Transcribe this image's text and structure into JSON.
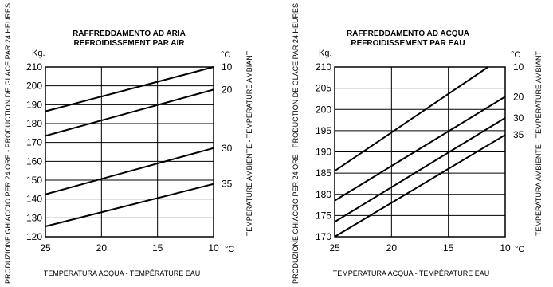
{
  "chart_data": [
    {
      "type": "line",
      "title": "RAFFREDDAMENTO AD ARIA",
      "subtitle": "REFROIDISSEMENT PAR AIR",
      "ylabel": "PRODUZIONE GHIACCIO PER 24 ORE - PRODUCTION DE GLACE PAR 24 HEURES",
      "ylabel_unit": "Kg.",
      "xlabel": "TEMPERATURA ACQUA - TEMPÉRATURE EAU",
      "x_unit": "°C",
      "right_label": "TEMPERATURE AMBIENTE - TEMPERATURE AMBIANT",
      "right_unit": "°C",
      "xlim": [
        25,
        10
      ],
      "ylim": [
        120,
        210
      ],
      "x_ticks": [
        "25",
        "20",
        "15",
        "10"
      ],
      "y_ticks": [
        "120",
        "130",
        "140",
        "150",
        "160",
        "170",
        "180",
        "190",
        "200",
        "210"
      ],
      "grid": true,
      "series": [
        {
          "name": "10",
          "x": [
            25,
            10
          ],
          "values": [
            186.5,
            210
          ]
        },
        {
          "name": "20",
          "x": [
            25,
            10
          ],
          "values": [
            173.5,
            198
          ]
        },
        {
          "name": "30",
          "x": [
            25,
            10
          ],
          "values": [
            142.5,
            167
          ]
        },
        {
          "name": "35",
          "x": [
            25,
            10
          ],
          "values": [
            125.5,
            148
          ]
        }
      ]
    },
    {
      "type": "line",
      "title": "RAFFREDDAMENTO AD ACQUA",
      "subtitle": "REFROIDISSEMENT PAR EAU",
      "ylabel": "PRODUZIONE GHIACCIO PER 24 ORE - PRODUCTION DE GLACE PAR 24 HEURES",
      "ylabel_unit": "Kg.",
      "xlabel": "TEMPERATURA ACQUA - TEMPÉRATURE EAU",
      "x_unit": "°C",
      "right_label": "TEMPERATURA AMBIENTE - TEMPERATURE AMBIANT",
      "right_unit": "°C",
      "xlim": [
        25,
        10
      ],
      "ylim": [
        170,
        210
      ],
      "x_ticks": [
        "25",
        "20",
        "15",
        "10"
      ],
      "y_ticks": [
        "170",
        "175",
        "180",
        "185",
        "190",
        "195",
        "200",
        "205",
        "210"
      ],
      "grid": true,
      "series": [
        {
          "name": "10",
          "x": [
            25,
            11.5
          ],
          "values": [
            185.5,
            210
          ]
        },
        {
          "name": "20",
          "x": [
            25,
            10
          ],
          "values": [
            178.5,
            203
          ]
        },
        {
          "name": "30",
          "x": [
            25,
            10
          ],
          "values": [
            173.5,
            198
          ]
        },
        {
          "name": "35",
          "x": [
            25,
            10
          ],
          "values": [
            170,
            194
          ]
        }
      ]
    }
  ]
}
